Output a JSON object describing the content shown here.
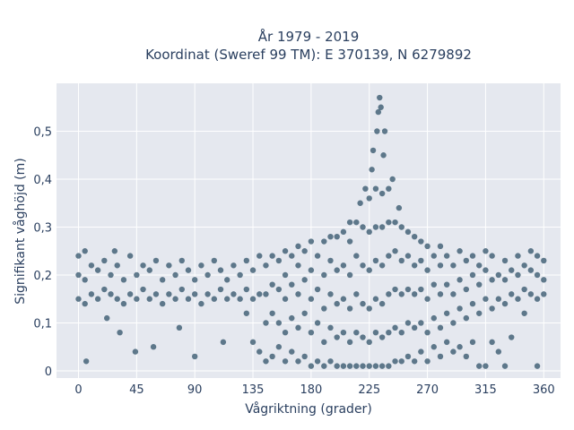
{
  "chart_data": {
    "type": "scatter",
    "title": "År 1979 - 2019",
    "subtitle": "Koordinat (Sweref 99 TM): E 370139, N 6279892",
    "xlabel": "Vågriktning (grader)",
    "ylabel": "Signifikant våghöjd (m)",
    "xlim": [
      -17,
      373
    ],
    "ylim": [
      -0.015,
      0.6
    ],
    "xticks": [
      0,
      45,
      90,
      135,
      180,
      225,
      270,
      315,
      360
    ],
    "xtick_labels": [
      "0",
      "45",
      "90",
      "135",
      "180",
      "225",
      "270",
      "315",
      "360"
    ],
    "yticks": [
      0,
      0.1,
      0.2,
      0.3,
      0.4,
      0.5
    ],
    "ytick_labels": [
      "0",
      "0,1",
      "0,2",
      "0,3",
      "0,4",
      "0,5"
    ],
    "grid": true,
    "marker_color": "#2f5168",
    "plot_bg": "#e5e8ef",
    "series": [
      {
        "points": [
          [
            0,
            0.15
          ],
          [
            0,
            0.2
          ],
          [
            0,
            0.24
          ],
          [
            5,
            0.14
          ],
          [
            5,
            0.19
          ],
          [
            5,
            0.25
          ],
          [
            6,
            0.02
          ],
          [
            10,
            0.16
          ],
          [
            10,
            0.22
          ],
          [
            15,
            0.15
          ],
          [
            15,
            0.21
          ],
          [
            20,
            0.17
          ],
          [
            20,
            0.23
          ],
          [
            22,
            0.11
          ],
          [
            25,
            0.16
          ],
          [
            25,
            0.2
          ],
          [
            28,
            0.25
          ],
          [
            30,
            0.15
          ],
          [
            30,
            0.22
          ],
          [
            32,
            0.08
          ],
          [
            35,
            0.14
          ],
          [
            35,
            0.19
          ],
          [
            40,
            0.16
          ],
          [
            40,
            0.24
          ],
          [
            44,
            0.04
          ],
          [
            45,
            0.15
          ],
          [
            45,
            0.2
          ],
          [
            50,
            0.17
          ],
          [
            50,
            0.22
          ],
          [
            55,
            0.15
          ],
          [
            55,
            0.21
          ],
          [
            58,
            0.05
          ],
          [
            60,
            0.16
          ],
          [
            60,
            0.23
          ],
          [
            65,
            0.14
          ],
          [
            65,
            0.19
          ],
          [
            70,
            0.16
          ],
          [
            70,
            0.22
          ],
          [
            75,
            0.15
          ],
          [
            75,
            0.2
          ],
          [
            78,
            0.09
          ],
          [
            80,
            0.17
          ],
          [
            80,
            0.23
          ],
          [
            85,
            0.15
          ],
          [
            85,
            0.21
          ],
          [
            90,
            0.16
          ],
          [
            90,
            0.19
          ],
          [
            90,
            0.03
          ],
          [
            95,
            0.14
          ],
          [
            95,
            0.22
          ],
          [
            100,
            0.16
          ],
          [
            100,
            0.2
          ],
          [
            105,
            0.15
          ],
          [
            105,
            0.23
          ],
          [
            110,
            0.17
          ],
          [
            110,
            0.21
          ],
          [
            112,
            0.06
          ],
          [
            115,
            0.15
          ],
          [
            115,
            0.19
          ],
          [
            120,
            0.16
          ],
          [
            120,
            0.22
          ],
          [
            125,
            0.15
          ],
          [
            125,
            0.2
          ],
          [
            130,
            0.12
          ],
          [
            130,
            0.17
          ],
          [
            130,
            0.23
          ],
          [
            135,
            0.06
          ],
          [
            135,
            0.15
          ],
          [
            135,
            0.21
          ],
          [
            140,
            0.04
          ],
          [
            140,
            0.16
          ],
          [
            140,
            0.24
          ],
          [
            145,
            0.02
          ],
          [
            145,
            0.1
          ],
          [
            145,
            0.16
          ],
          [
            145,
            0.22
          ],
          [
            150,
            0.03
          ],
          [
            150,
            0.12
          ],
          [
            150,
            0.18
          ],
          [
            150,
            0.24
          ],
          [
            155,
            0.05
          ],
          [
            155,
            0.1
          ],
          [
            155,
            0.17
          ],
          [
            155,
            0.23
          ],
          [
            160,
            0.02
          ],
          [
            160,
            0.08
          ],
          [
            160,
            0.15
          ],
          [
            160,
            0.2
          ],
          [
            160,
            0.25
          ],
          [
            165,
            0.04
          ],
          [
            165,
            0.11
          ],
          [
            165,
            0.18
          ],
          [
            165,
            0.24
          ],
          [
            170,
            0.02
          ],
          [
            170,
            0.09
          ],
          [
            170,
            0.16
          ],
          [
            170,
            0.22
          ],
          [
            170,
            0.26
          ],
          [
            175,
            0.03
          ],
          [
            175,
            0.12
          ],
          [
            175,
            0.19
          ],
          [
            175,
            0.25
          ],
          [
            180,
            0.01
          ],
          [
            180,
            0.08
          ],
          [
            180,
            0.15
          ],
          [
            180,
            0.21
          ],
          [
            180,
            0.27
          ],
          [
            185,
            0.02
          ],
          [
            185,
            0.1
          ],
          [
            185,
            0.17
          ],
          [
            185,
            0.24
          ],
          [
            190,
            0.01
          ],
          [
            190,
            0.06
          ],
          [
            190,
            0.13
          ],
          [
            190,
            0.2
          ],
          [
            190,
            0.27
          ],
          [
            195,
            0.02
          ],
          [
            195,
            0.09
          ],
          [
            195,
            0.16
          ],
          [
            195,
            0.23
          ],
          [
            195,
            0.28
          ],
          [
            200,
            0.01
          ],
          [
            200,
            0.07
          ],
          [
            200,
            0.14
          ],
          [
            200,
            0.21
          ],
          [
            200,
            0.28
          ],
          [
            205,
            0.01
          ],
          [
            205,
            0.08
          ],
          [
            205,
            0.15
          ],
          [
            205,
            0.22
          ],
          [
            205,
            0.29
          ],
          [
            210,
            0.01
          ],
          [
            210,
            0.06
          ],
          [
            210,
            0.13
          ],
          [
            210,
            0.2
          ],
          [
            210,
            0.27
          ],
          [
            210,
            0.31
          ],
          [
            215,
            0.01
          ],
          [
            215,
            0.08
          ],
          [
            215,
            0.16
          ],
          [
            215,
            0.24
          ],
          [
            215,
            0.31
          ],
          [
            218,
            0.35
          ],
          [
            220,
            0.01
          ],
          [
            220,
            0.07
          ],
          [
            220,
            0.14
          ],
          [
            220,
            0.22
          ],
          [
            220,
            0.3
          ],
          [
            222,
            0.38
          ],
          [
            225,
            0.01
          ],
          [
            225,
            0.06
          ],
          [
            225,
            0.13
          ],
          [
            225,
            0.21
          ],
          [
            225,
            0.29
          ],
          [
            225,
            0.36
          ],
          [
            227,
            0.42
          ],
          [
            228,
            0.46
          ],
          [
            230,
            0.01
          ],
          [
            230,
            0.08
          ],
          [
            230,
            0.15
          ],
          [
            230,
            0.23
          ],
          [
            230,
            0.3
          ],
          [
            230,
            0.38
          ],
          [
            231,
            0.5
          ],
          [
            232,
            0.54
          ],
          [
            233,
            0.57
          ],
          [
            234,
            0.55
          ],
          [
            235,
            0.01
          ],
          [
            235,
            0.07
          ],
          [
            235,
            0.14
          ],
          [
            235,
            0.22
          ],
          [
            235,
            0.3
          ],
          [
            235,
            0.37
          ],
          [
            236,
            0.45
          ],
          [
            237,
            0.5
          ],
          [
            240,
            0.01
          ],
          [
            240,
            0.08
          ],
          [
            240,
            0.16
          ],
          [
            240,
            0.24
          ],
          [
            240,
            0.31
          ],
          [
            240,
            0.38
          ],
          [
            243,
            0.4
          ],
          [
            245,
            0.02
          ],
          [
            245,
            0.09
          ],
          [
            245,
            0.17
          ],
          [
            245,
            0.25
          ],
          [
            245,
            0.31
          ],
          [
            248,
            0.34
          ],
          [
            250,
            0.02
          ],
          [
            250,
            0.08
          ],
          [
            250,
            0.16
          ],
          [
            250,
            0.23
          ],
          [
            250,
            0.3
          ],
          [
            255,
            0.03
          ],
          [
            255,
            0.1
          ],
          [
            255,
            0.17
          ],
          [
            255,
            0.24
          ],
          [
            255,
            0.29
          ],
          [
            260,
            0.02
          ],
          [
            260,
            0.09
          ],
          [
            260,
            0.16
          ],
          [
            260,
            0.22
          ],
          [
            260,
            0.28
          ],
          [
            265,
            0.04
          ],
          [
            265,
            0.1
          ],
          [
            265,
            0.17
          ],
          [
            265,
            0.23
          ],
          [
            265,
            0.27
          ],
          [
            270,
            0.02
          ],
          [
            270,
            0.08
          ],
          [
            270,
            0.15
          ],
          [
            270,
            0.21
          ],
          [
            270,
            0.26
          ],
          [
            275,
            0.05
          ],
          [
            275,
            0.11
          ],
          [
            275,
            0.18
          ],
          [
            275,
            0.24
          ],
          [
            280,
            0.03
          ],
          [
            280,
            0.09
          ],
          [
            280,
            0.16
          ],
          [
            280,
            0.22
          ],
          [
            280,
            0.26
          ],
          [
            285,
            0.06
          ],
          [
            285,
            0.12
          ],
          [
            285,
            0.18
          ],
          [
            285,
            0.24
          ],
          [
            290,
            0.04
          ],
          [
            290,
            0.1
          ],
          [
            290,
            0.16
          ],
          [
            290,
            0.22
          ],
          [
            295,
            0.05
          ],
          [
            295,
            0.13
          ],
          [
            295,
            0.19
          ],
          [
            295,
            0.25
          ],
          [
            300,
            0.03
          ],
          [
            300,
            0.11
          ],
          [
            300,
            0.17
          ],
          [
            300,
            0.23
          ],
          [
            305,
            0.06
          ],
          [
            305,
            0.14
          ],
          [
            305,
            0.2
          ],
          [
            305,
            0.24
          ],
          [
            310,
            0.01
          ],
          [
            310,
            0.12
          ],
          [
            310,
            0.18
          ],
          [
            310,
            0.22
          ],
          [
            315,
            0.01
          ],
          [
            315,
            0.15
          ],
          [
            315,
            0.21
          ],
          [
            315,
            0.25
          ],
          [
            320,
            0.06
          ],
          [
            320,
            0.13
          ],
          [
            320,
            0.19
          ],
          [
            320,
            0.24
          ],
          [
            325,
            0.04
          ],
          [
            325,
            0.15
          ],
          [
            325,
            0.2
          ],
          [
            330,
            0.01
          ],
          [
            330,
            0.14
          ],
          [
            330,
            0.19
          ],
          [
            330,
            0.23
          ],
          [
            335,
            0.07
          ],
          [
            335,
            0.16
          ],
          [
            335,
            0.21
          ],
          [
            340,
            0.15
          ],
          [
            340,
            0.2
          ],
          [
            340,
            0.24
          ],
          [
            345,
            0.12
          ],
          [
            345,
            0.17
          ],
          [
            345,
            0.22
          ],
          [
            350,
            0.16
          ],
          [
            350,
            0.21
          ],
          [
            350,
            0.25
          ],
          [
            355,
            0.01
          ],
          [
            355,
            0.15
          ],
          [
            355,
            0.2
          ],
          [
            355,
            0.24
          ],
          [
            360,
            0.16
          ],
          [
            360,
            0.19
          ],
          [
            360,
            0.23
          ]
        ]
      }
    ]
  }
}
